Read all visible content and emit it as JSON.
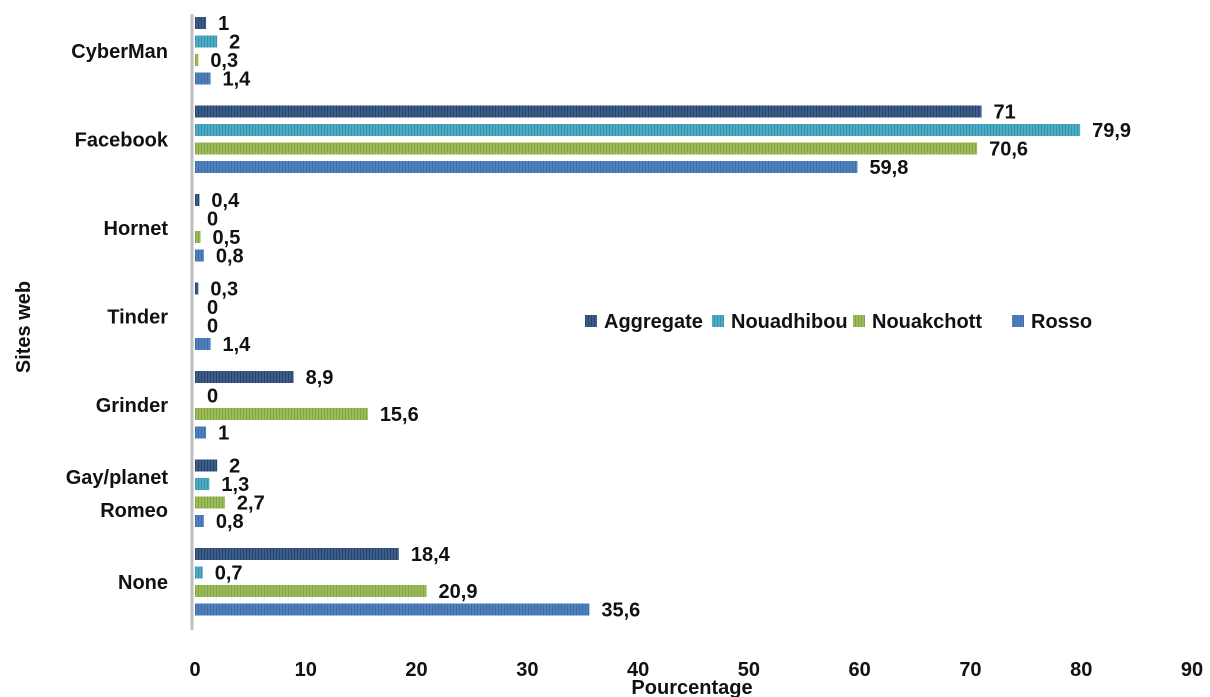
{
  "chart_data": {
    "type": "bar",
    "orientation": "horizontal",
    "xlabel": "Pourcentage",
    "ylabel": "Sites web",
    "xlim": [
      0,
      90
    ],
    "xticks": [
      0,
      10,
      20,
      30,
      40,
      50,
      60,
      70,
      80,
      90
    ],
    "grid": false,
    "legend_position": "right-center",
    "categories": [
      [
        "CyberMan"
      ],
      [
        "Facebook"
      ],
      [
        "Hornet"
      ],
      [
        "Tinder"
      ],
      [
        "Grinder"
      ],
      [
        "Gay/planet",
        "Romeo"
      ],
      [
        "None"
      ]
    ],
    "series": [
      {
        "name": "Aggregate",
        "color": "#3b5d8a",
        "values": [
          1,
          71,
          0.4,
          0.3,
          8.9,
          2,
          18.4
        ],
        "labels": [
          "1",
          "71",
          "0,4",
          "0,3",
          "8,9",
          "2",
          "18,4"
        ]
      },
      {
        "name": "Nouadhibou",
        "color": "#4bacc6",
        "values": [
          2,
          79.9,
          0,
          0,
          0,
          1.3,
          0.7
        ],
        "labels": [
          "2",
          "79,9",
          "0",
          "0",
          "0",
          "1,3",
          "0,7"
        ]
      },
      {
        "name": "Nouakchott",
        "color": "#9bbb59",
        "values": [
          0.3,
          70.6,
          0.5,
          0,
          15.6,
          2.7,
          20.9
        ],
        "labels": [
          "0,3",
          "70,6",
          "0,5",
          "0",
          "15,6",
          "2,7",
          "20,9"
        ]
      },
      {
        "name": "Rosso",
        "color": "#4f81bd",
        "values": [
          1.4,
          59.8,
          0.8,
          1.4,
          1,
          0.8,
          35.6
        ],
        "labels": [
          "1,4",
          "59,8",
          "0,8",
          "1,4",
          "1",
          "0,8",
          "35,6"
        ]
      }
    ]
  }
}
